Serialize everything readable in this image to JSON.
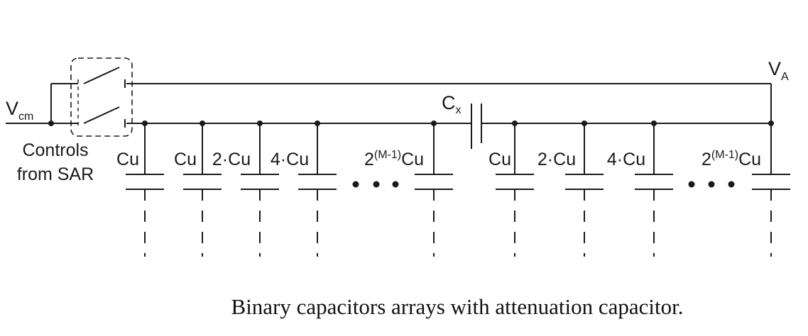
{
  "labels": {
    "vcm_main": "V",
    "vcm_sub": "cm",
    "va_main": "V",
    "va_sub": "A",
    "cx_main": "C",
    "cx_sub": "x",
    "controls_line1": "Controls",
    "controls_line2": "from SAR"
  },
  "capacitors": [
    {
      "label": "Cu"
    },
    {
      "label": "Cu"
    },
    {
      "label": "2·Cu"
    },
    {
      "label": "4·Cu"
    },
    {
      "label_base": "2",
      "label_sup": "(M-1)",
      "label_suffix": "Cu"
    },
    {
      "label": "Cu"
    },
    {
      "label": "2·Cu"
    },
    {
      "label": "4·Cu"
    },
    {
      "label_base": "2",
      "label_sup": "(M-1)",
      "label_suffix": "Cu"
    }
  ],
  "caption": "Binary capacitors arrays with attenuation capacitor."
}
